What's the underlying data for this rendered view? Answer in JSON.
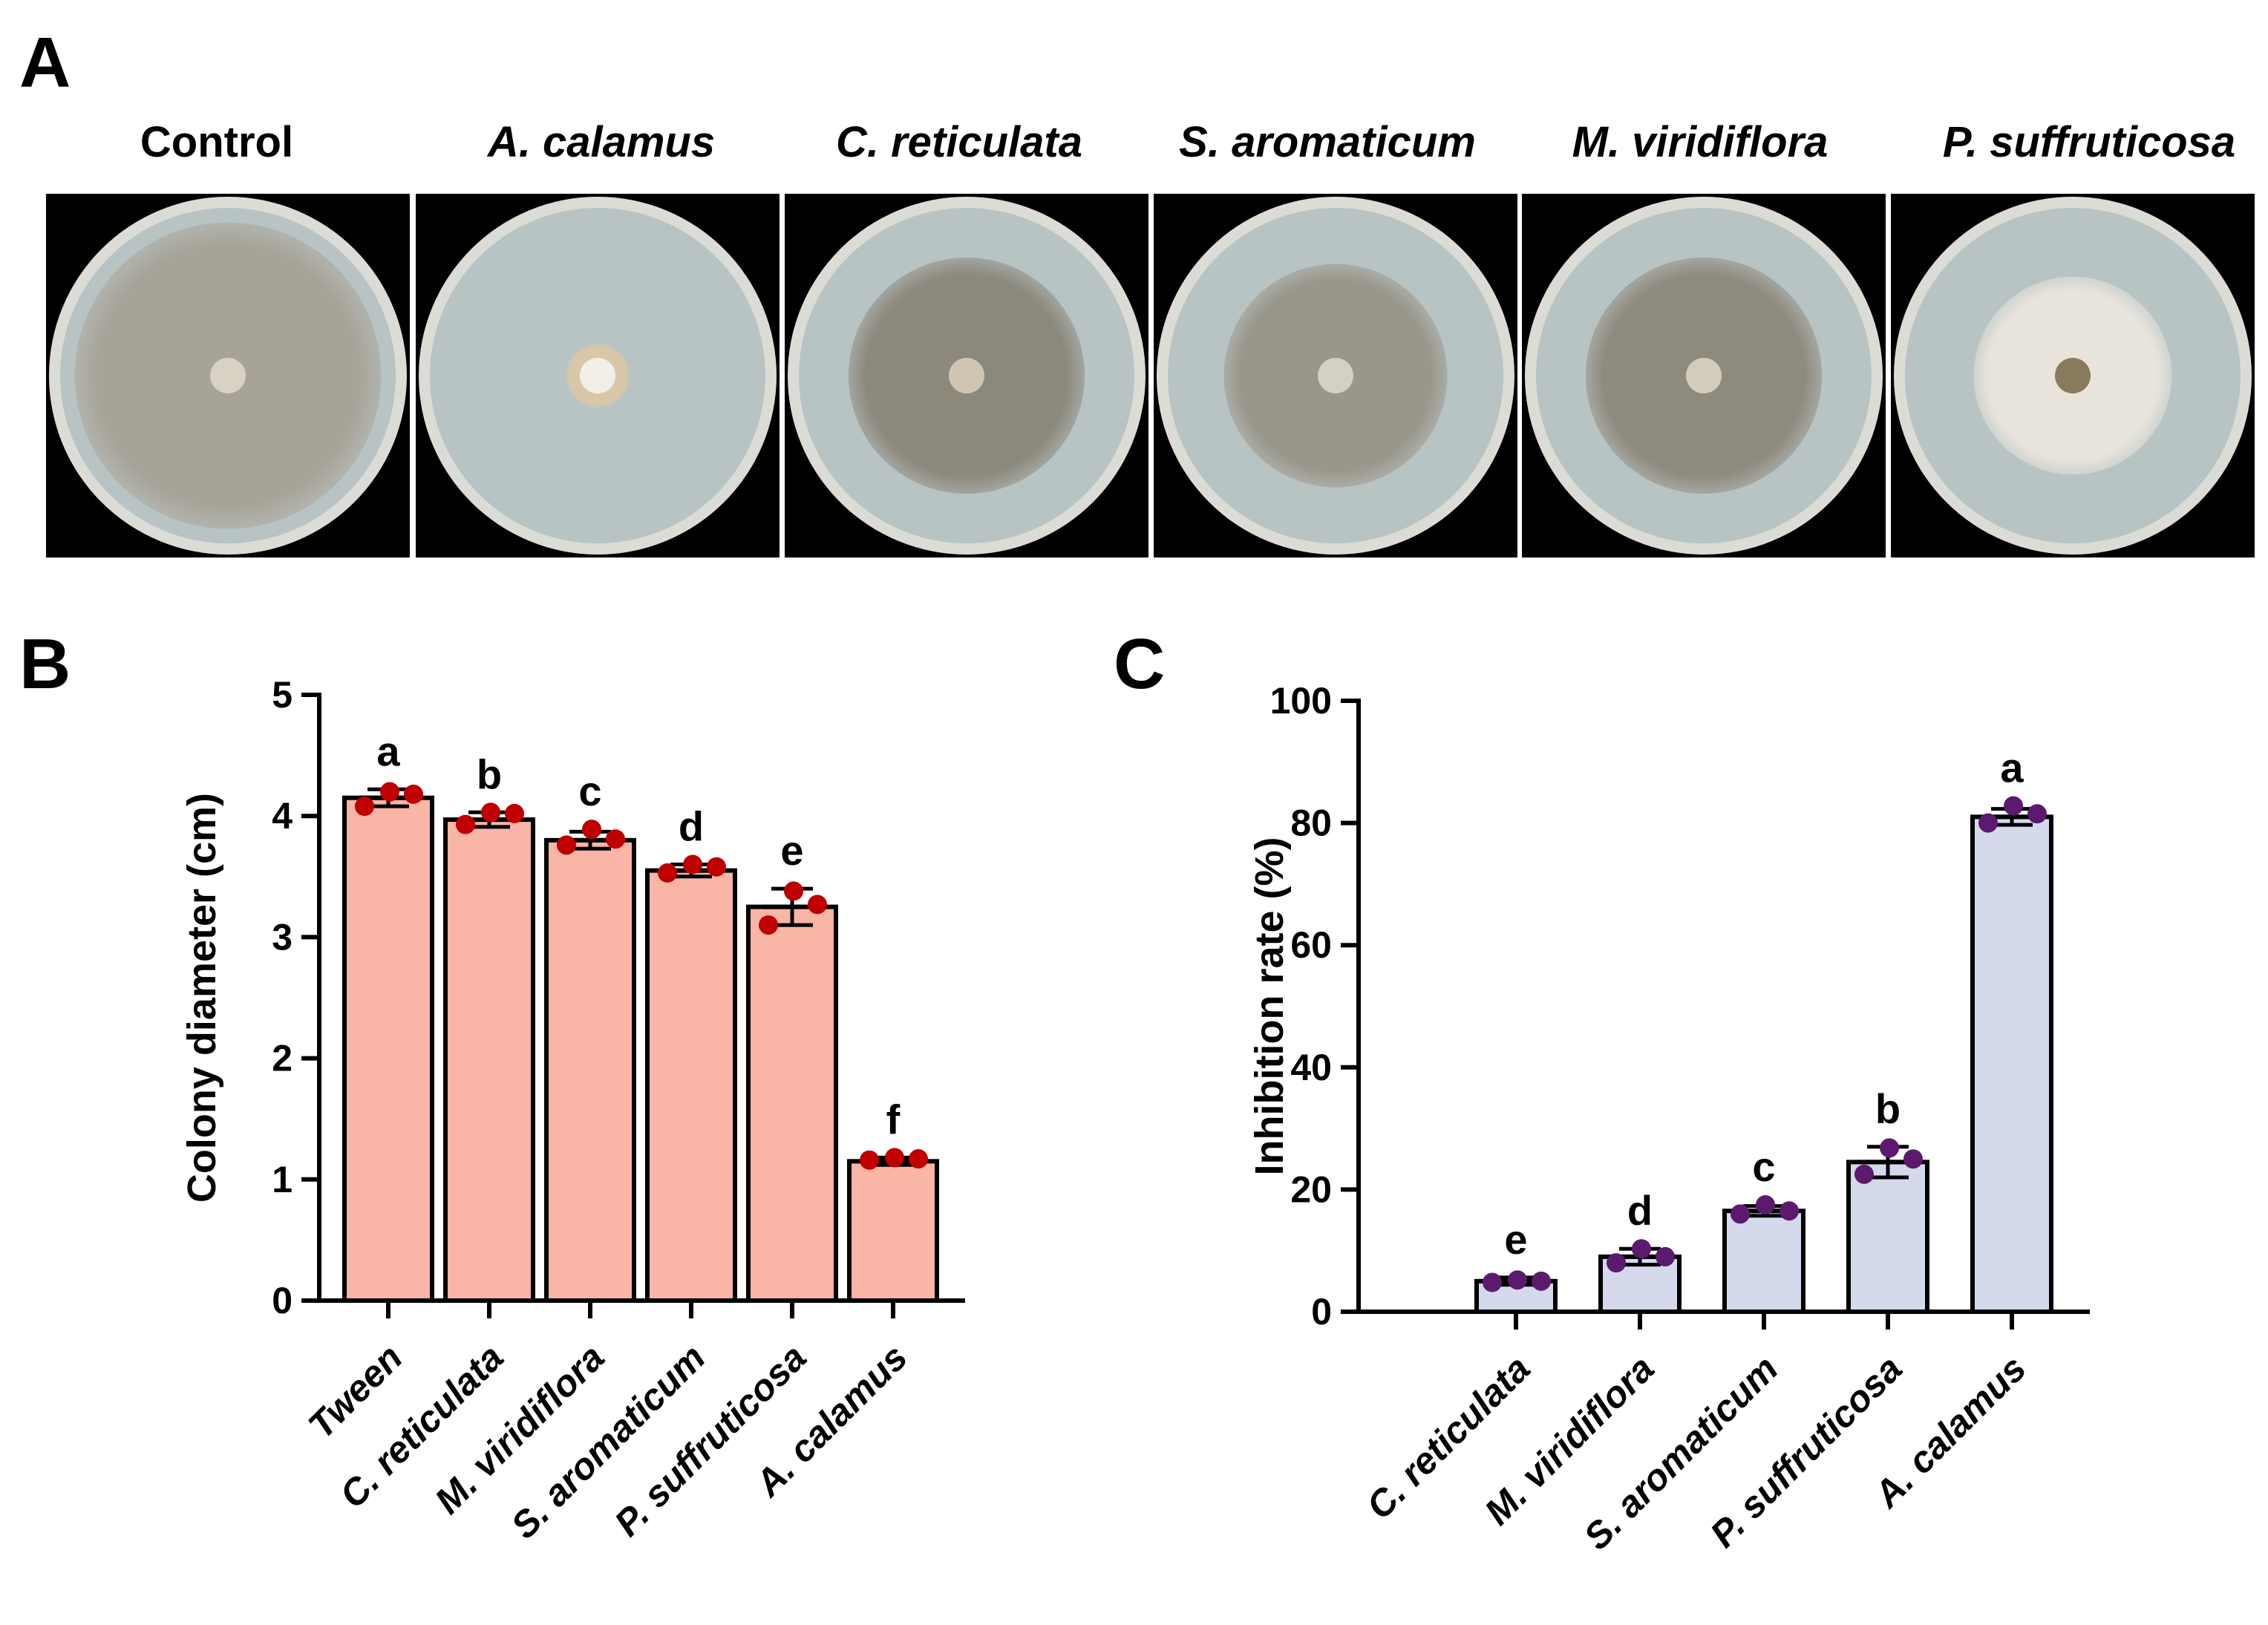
{
  "panels": {
    "a": "A",
    "b": "B",
    "c": "C"
  },
  "dishes": [
    {
      "label": "Control",
      "italic": false,
      "colony_fill": 0.96,
      "colony_color": "#a8a398",
      "center_color": "#d8d2c4"
    },
    {
      "label": "A. calamus",
      "italic": true,
      "colony_fill": 0.2,
      "colony_color": "#d9c8a8",
      "center_color": "#f2efe8"
    },
    {
      "label": "C. reticulata",
      "italic": true,
      "colony_fill": 0.74,
      "colony_color": "#8c887c",
      "center_color": "#cfc6b2"
    },
    {
      "label": "S. aromaticum",
      "italic": true,
      "colony_fill": 0.7,
      "colony_color": "#9a968a",
      "center_color": "#d4d0c6"
    },
    {
      "label": "M. viridiflora",
      "italic": true,
      "colony_fill": 0.74,
      "colony_color": "#8f8a7e",
      "center_color": "#d2ccbc"
    },
    {
      "label": "P. suffruticosa",
      "italic": true,
      "colony_fill": 0.62,
      "colony_color": "#e8e4dc",
      "center_color": "#8a7a5c"
    }
  ],
  "chart_data": [
    {
      "id": "B",
      "type": "bar",
      "ylabel": "Colony diameter (cm)",
      "ylim": [
        0,
        5
      ],
      "yticks": [
        0,
        1,
        2,
        3,
        4,
        5
      ],
      "categories": [
        "Tween",
        "C. reticulata",
        "M. viridiflora",
        "S. aromaticum",
        "P. suffruticosa",
        "A. calamus"
      ],
      "values": [
        4.15,
        3.97,
        3.8,
        3.55,
        3.25,
        1.15
      ],
      "error": [
        0.07,
        0.06,
        0.07,
        0.05,
        0.15,
        0.03
      ],
      "points": [
        [
          4.08,
          4.2,
          4.18
        ],
        [
          3.93,
          4.03,
          4.02
        ],
        [
          3.76,
          3.89,
          3.81
        ],
        [
          3.53,
          3.6,
          3.58
        ],
        [
          3.1,
          3.38,
          3.27
        ],
        [
          1.16,
          1.18,
          1.17
        ]
      ],
      "letters": [
        "a",
        "b",
        "c",
        "d",
        "e",
        "f"
      ],
      "bar_color": "#f9b5a5",
      "point_color": "#c00000"
    },
    {
      "id": "C",
      "type": "bar",
      "ylabel": "Inhibition rate (%)",
      "ylim": [
        0,
        100
      ],
      "yticks": [
        0,
        20,
        40,
        60,
        80,
        100
      ],
      "categories": [
        "C. reticulata",
        "M. viridiflora",
        "S. aromaticum",
        "P. suffruticosa",
        "A. calamus"
      ],
      "values": [
        5,
        9,
        16.5,
        24.5,
        81
      ],
      "error": [
        0.6,
        1.3,
        0.8,
        2.5,
        1.3
      ],
      "points": [
        [
          4.8,
          5.2,
          5.0
        ],
        [
          8.0,
          10.3,
          9.0
        ],
        [
          16.0,
          17.5,
          16.5
        ],
        [
          22.5,
          26.8,
          25.0
        ],
        [
          80.0,
          82.8,
          81.5
        ]
      ],
      "letters": [
        "e",
        "d",
        "c",
        "b",
        "a"
      ],
      "bar_color": "#d5d9ec",
      "point_color": "#5c1a6e"
    }
  ]
}
